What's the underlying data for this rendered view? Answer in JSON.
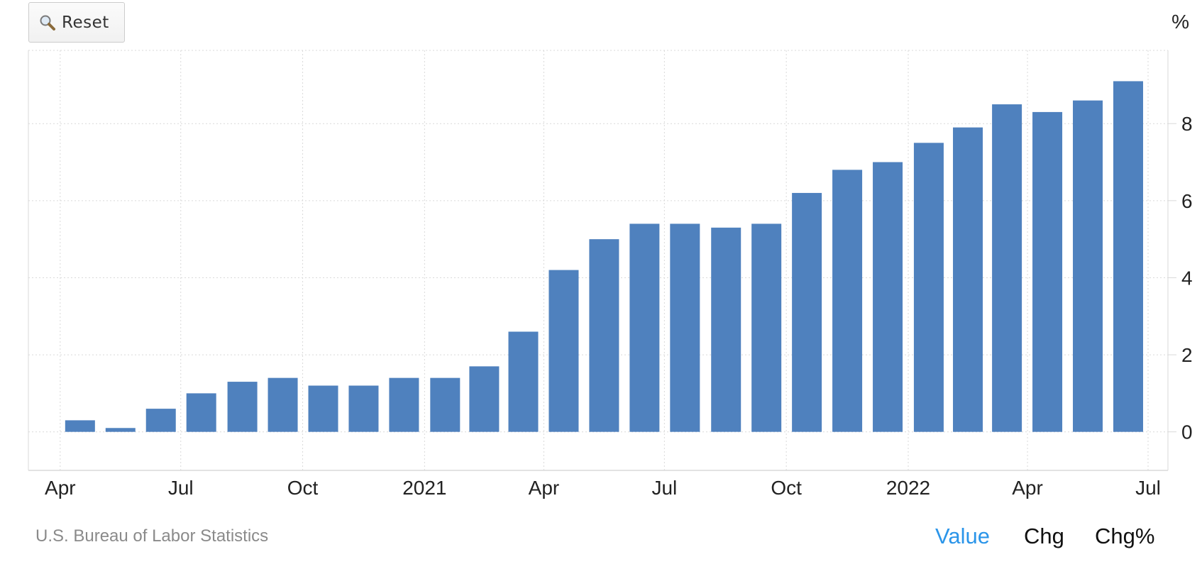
{
  "toolbar": {
    "reset_label": "Reset",
    "reset_icon": "magnifier-icon"
  },
  "source": "U.S. Bureau of Labor Statistics",
  "modes": [
    {
      "label": "Value",
      "active": true
    },
    {
      "label": "Chg",
      "active": false
    },
    {
      "label": "Chg%",
      "active": false
    }
  ],
  "colors": {
    "bar": "#4f81be",
    "grid": "#d9d9d9",
    "active_mode": "#2b95e9",
    "source_text": "#8a8a8a"
  },
  "chart_data": {
    "type": "bar",
    "title": "",
    "xlabel": "",
    "ylabel": "%",
    "ylim": [
      -1,
      9.9
    ],
    "yticks": [
      0,
      2,
      4,
      6,
      8
    ],
    "grid": true,
    "x_ticks": [
      {
        "label": "Apr",
        "date": "2020-04-01"
      },
      {
        "label": "Jul",
        "date": "2020-07-01"
      },
      {
        "label": "Oct",
        "date": "2020-10-01"
      },
      {
        "label": "2021",
        "date": "2021-01-01"
      },
      {
        "label": "Apr",
        "date": "2021-04-01"
      },
      {
        "label": "Jul",
        "date": "2021-07-01"
      },
      {
        "label": "Oct",
        "date": "2021-10-01"
      },
      {
        "label": "2022",
        "date": "2022-01-01"
      },
      {
        "label": "Apr",
        "date": "2022-04-01"
      },
      {
        "label": "Jul",
        "date": "2022-07-01"
      }
    ],
    "categories": [
      "2020-04",
      "2020-05",
      "2020-06",
      "2020-07",
      "2020-08",
      "2020-09",
      "2020-10",
      "2020-11",
      "2020-12",
      "2021-01",
      "2021-02",
      "2021-03",
      "2021-04",
      "2021-05",
      "2021-06",
      "2021-07",
      "2021-08",
      "2021-09",
      "2021-10",
      "2021-11",
      "2021-12",
      "2022-01",
      "2022-02",
      "2022-03",
      "2022-04",
      "2022-05",
      "2022-06"
    ],
    "values": [
      0.3,
      0.1,
      0.6,
      1.0,
      1.3,
      1.4,
      1.2,
      1.2,
      1.4,
      1.4,
      1.7,
      2.6,
      4.2,
      5.0,
      5.4,
      5.4,
      5.3,
      5.4,
      6.2,
      6.8,
      7.0,
      7.5,
      7.9,
      8.5,
      8.3,
      8.6,
      9.1
    ]
  }
}
